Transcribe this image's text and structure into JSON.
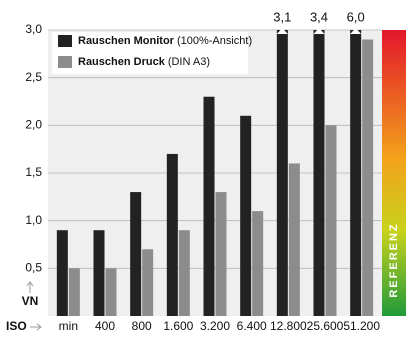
{
  "chart_data": {
    "type": "bar",
    "categories": [
      "min",
      "400",
      "800",
      "1.600",
      "3.200",
      "6.400",
      "12.800",
      "25.600",
      "51.200"
    ],
    "series": [
      {
        "name": "Rauschen Monitor",
        "name_note": "(100%-Ansicht)",
        "color": "#222222",
        "values": [
          0.9,
          0.9,
          1.3,
          1.7,
          2.3,
          2.1,
          3.1,
          3.4,
          6.0
        ],
        "value_labels": [
          null,
          null,
          null,
          null,
          null,
          null,
          "3,1",
          "3,4",
          "6,0"
        ]
      },
      {
        "name": "Rauschen Druck",
        "name_note": "(DIN A3)",
        "color": "#8c8c8c",
        "values": [
          0.5,
          0.5,
          0.7,
          0.9,
          1.3,
          1.1,
          1.6,
          2.0,
          2.9
        ]
      }
    ],
    "ylim": [
      0,
      3.0
    ],
    "yticks": [
      {
        "value": 0.5,
        "label": "0,5"
      },
      {
        "value": 1.0,
        "label": "1,0"
      },
      {
        "value": 1.5,
        "label": "1,5"
      },
      {
        "value": 2.0,
        "label": "2,0"
      },
      {
        "value": 2.5,
        "label": "2,5"
      },
      {
        "value": 3.0,
        "label": "3,0"
      }
    ],
    "ylabel": "VN",
    "xlabel": "ISO",
    "reference_label": "REFERENZ",
    "grid": true
  }
}
